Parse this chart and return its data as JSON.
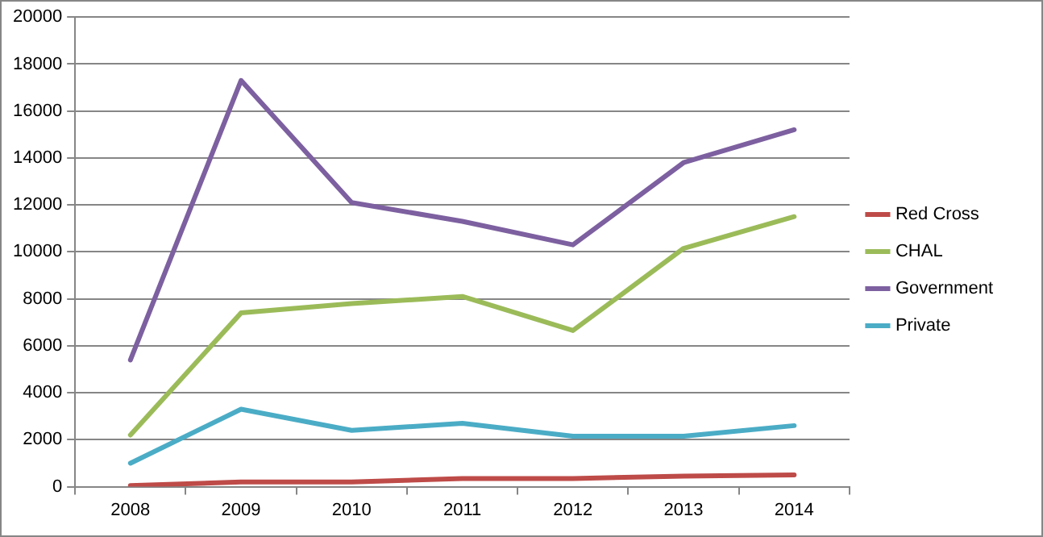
{
  "chart_data": {
    "type": "line",
    "categories": [
      "2008",
      "2009",
      "2010",
      "2011",
      "2012",
      "2013",
      "2014"
    ],
    "series": [
      {
        "name": "Red Cross",
        "color": "#be4b48",
        "values": [
          50,
          200,
          200,
          350,
          350,
          450,
          500
        ]
      },
      {
        "name": "CHAL",
        "color": "#9bbb59",
        "values": [
          2200,
          7400,
          7800,
          8100,
          6650,
          10150,
          11500
        ]
      },
      {
        "name": "Government",
        "color": "#7d60a0",
        "values": [
          5400,
          17300,
          12100,
          11300,
          10300,
          13800,
          15200
        ]
      },
      {
        "name": "Private",
        "color": "#4bacc6",
        "values": [
          1000,
          3300,
          2400,
          2700,
          2150,
          2150,
          2600
        ]
      }
    ],
    "ylim": [
      0,
      20000
    ],
    "yticks": [
      0,
      2000,
      4000,
      6000,
      8000,
      10000,
      12000,
      14000,
      16000,
      18000,
      20000
    ],
    "grid": "y",
    "legend": "right",
    "marker": "none",
    "line_style": "solid"
  }
}
